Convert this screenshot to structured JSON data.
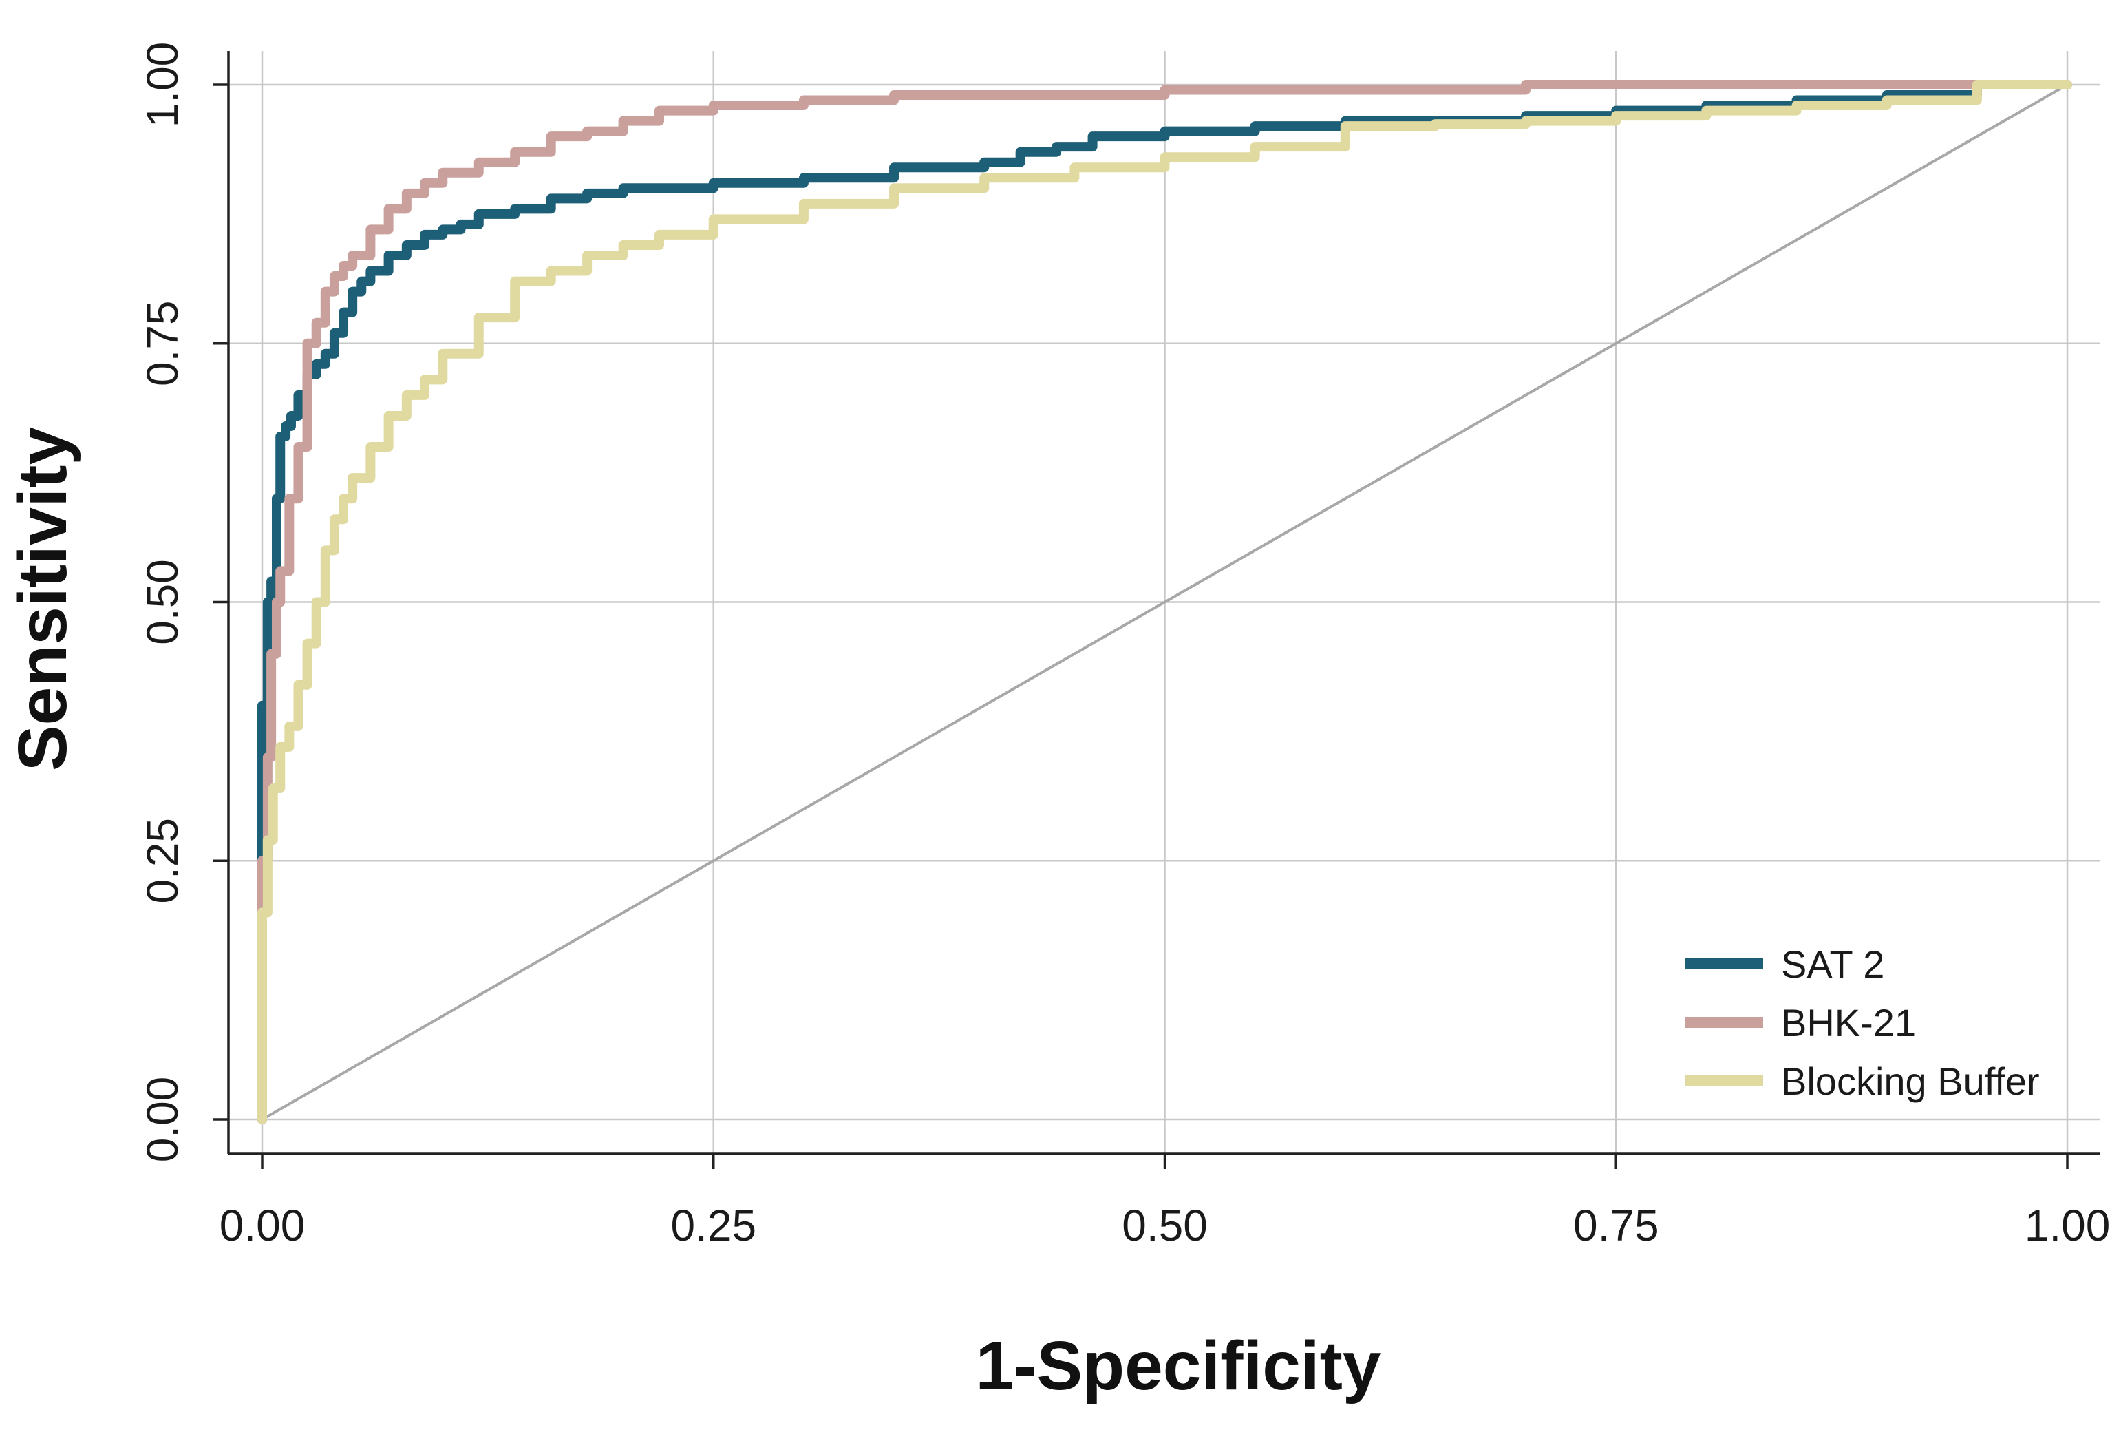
{
  "chart_data": {
    "type": "line",
    "xlabel": "1-Specificity",
    "ylabel": "Sensitivity",
    "xlim": [
      0,
      1
    ],
    "ylim": [
      0,
      1
    ],
    "xticks": [
      "0.00",
      "0.25",
      "0.50",
      "0.75",
      "1.00"
    ],
    "yticks": [
      "0.00",
      "0.25",
      "0.50",
      "0.75",
      "1.00"
    ],
    "xtick_values": [
      0,
      0.25,
      0.5,
      0.75,
      1
    ],
    "ytick_values": [
      0,
      0.25,
      0.5,
      0.75,
      1
    ],
    "grid": true,
    "legend_position": "bottom-right",
    "reference_line": {
      "x": [
        0,
        1
      ],
      "y": [
        0,
        1
      ],
      "color": "#a8a8a8"
    },
    "series": [
      {
        "name": "SAT 2",
        "color": "#1e5f78",
        "x": [
          0,
          0,
          0.003,
          0.005,
          0.008,
          0.01,
          0.013,
          0.016,
          0.02,
          0.025,
          0.03,
          0.035,
          0.04,
          0.045,
          0.05,
          0.055,
          0.06,
          0.07,
          0.08,
          0.09,
          0.1,
          0.11,
          0.12,
          0.14,
          0.16,
          0.18,
          0.2,
          0.22,
          0.25,
          0.3,
          0.35,
          0.4,
          0.42,
          0.44,
          0.46,
          0.5,
          0.55,
          0.6,
          0.65,
          0.7,
          0.75,
          0.8,
          0.85,
          0.9,
          0.95,
          1.0
        ],
        "y": [
          0,
          0.15,
          0.4,
          0.5,
          0.52,
          0.6,
          0.66,
          0.67,
          0.68,
          0.7,
          0.72,
          0.73,
          0.74,
          0.76,
          0.78,
          0.8,
          0.81,
          0.82,
          0.835,
          0.845,
          0.855,
          0.86,
          0.865,
          0.875,
          0.88,
          0.89,
          0.895,
          0.9,
          0.9,
          0.905,
          0.91,
          0.92,
          0.925,
          0.935,
          0.94,
          0.95,
          0.955,
          0.96,
          0.965,
          0.965,
          0.97,
          0.975,
          0.98,
          0.985,
          0.99,
          1.0
        ]
      },
      {
        "name": "BHK-21",
        "color": "#c9a09c",
        "x": [
          0,
          0,
          0.003,
          0.005,
          0.008,
          0.01,
          0.015,
          0.02,
          0.025,
          0.03,
          0.035,
          0.04,
          0.045,
          0.05,
          0.06,
          0.07,
          0.08,
          0.09,
          0.1,
          0.12,
          0.14,
          0.16,
          0.18,
          0.2,
          0.22,
          0.25,
          0.3,
          0.35,
          0.4,
          0.5,
          0.6,
          0.7,
          0.8,
          0.9,
          1.0
        ],
        "y": [
          0,
          0.1,
          0.25,
          0.35,
          0.45,
          0.5,
          0.53,
          0.6,
          0.65,
          0.75,
          0.77,
          0.8,
          0.815,
          0.825,
          0.835,
          0.86,
          0.88,
          0.895,
          0.905,
          0.915,
          0.925,
          0.935,
          0.95,
          0.955,
          0.965,
          0.975,
          0.98,
          0.985,
          0.99,
          0.99,
          0.995,
          0.995,
          1.0,
          1.0,
          1.0
        ]
      },
      {
        "name": "Blocking Buffer",
        "color": "#e0d9a0",
        "x": [
          0,
          0,
          0.003,
          0.006,
          0.01,
          0.015,
          0.02,
          0.025,
          0.03,
          0.035,
          0.04,
          0.045,
          0.05,
          0.06,
          0.07,
          0.08,
          0.09,
          0.1,
          0.12,
          0.14,
          0.16,
          0.18,
          0.2,
          0.22,
          0.25,
          0.3,
          0.35,
          0.4,
          0.45,
          0.5,
          0.55,
          0.6,
          0.65,
          0.7,
          0.75,
          0.8,
          0.85,
          0.9,
          0.95,
          1.0
        ],
        "y": [
          0,
          0.1,
          0.2,
          0.27,
          0.32,
          0.36,
          0.38,
          0.42,
          0.46,
          0.5,
          0.55,
          0.58,
          0.6,
          0.62,
          0.65,
          0.68,
          0.7,
          0.715,
          0.74,
          0.775,
          0.81,
          0.82,
          0.835,
          0.845,
          0.855,
          0.87,
          0.885,
          0.9,
          0.91,
          0.92,
          0.93,
          0.94,
          0.96,
          0.962,
          0.965,
          0.97,
          0.975,
          0.98,
          0.985,
          1.0
        ]
      }
    ]
  }
}
